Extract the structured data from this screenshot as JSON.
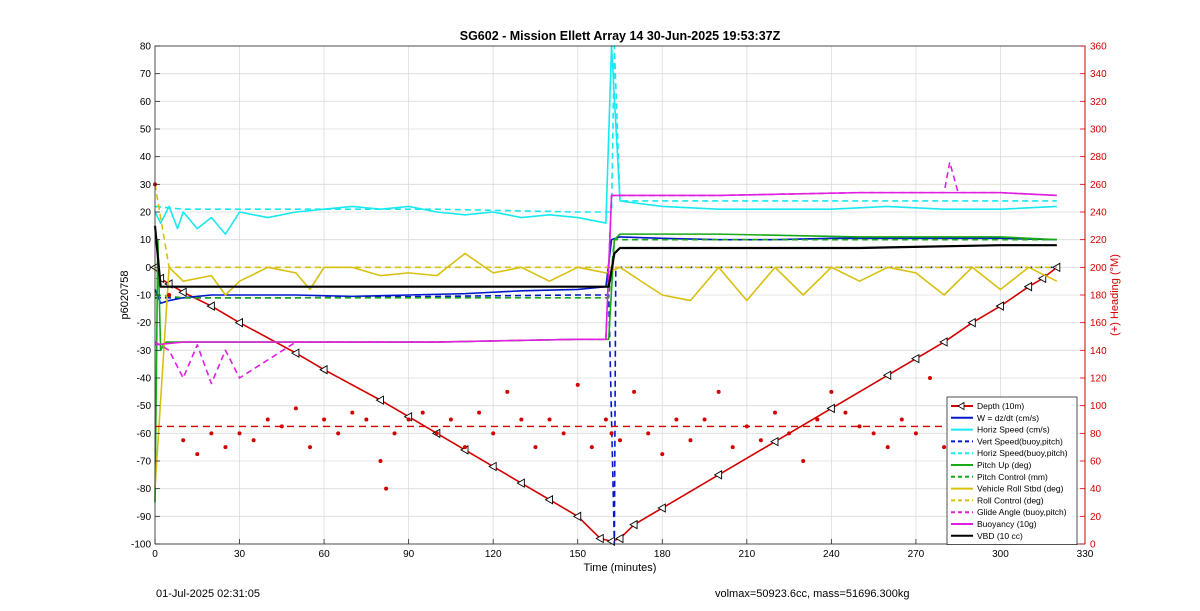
{
  "chart_data": {
    "type": "line",
    "title": "SG602 - Mission Ellett Array 14 30-Jun-2025 19:53:37Z",
    "xlabel": "Time (minutes)",
    "ylabel_left": "p6020758",
    "ylabel_right": "(+) Heading (°M)",
    "xlim": [
      0,
      330
    ],
    "ylim_left": [
      -100,
      80
    ],
    "ylim_right": [
      0,
      360
    ],
    "x_ticks": [
      0,
      30,
      60,
      90,
      120,
      150,
      180,
      210,
      240,
      270,
      300,
      330
    ],
    "y_ticks_left": [
      80,
      70,
      60,
      50,
      40,
      30,
      20,
      10,
      0,
      -10,
      -20,
      -30,
      -40,
      -50,
      -60,
      -70,
      -80,
      -90,
      -100
    ],
    "y_ticks_right": [
      360,
      340,
      320,
      300,
      280,
      260,
      240,
      220,
      200,
      180,
      160,
      140,
      120,
      100,
      80,
      60,
      40,
      20,
      0
    ],
    "colors": {
      "depth": "#d40000",
      "w": "#0018c8",
      "horiz": "#18e8f0",
      "pitch": "#18a818",
      "roll": "#d8c010",
      "glide": "#e020e0",
      "vbd": "#000000",
      "heading": "#d40000",
      "right_axis": "#d40000"
    },
    "legend_placement": "bottom-right",
    "legend": [
      {
        "label": "Depth (10m)",
        "color": "#d40000",
        "style": "solid-marker"
      },
      {
        "label": "W = dz/dt (cm/s)",
        "color": "#0018c8",
        "style": "solid"
      },
      {
        "label": "Horiz Speed (cm/s)",
        "color": "#18e8f0",
        "style": "solid"
      },
      {
        "label": "Vert Speed(buoy,pitch)",
        "color": "#0018c8",
        "style": "dashed"
      },
      {
        "label": "Horiz Speed(buoy,pitch)",
        "color": "#18e8f0",
        "style": "dashed"
      },
      {
        "label": "Pitch Up (deg)",
        "color": "#18a818",
        "style": "solid"
      },
      {
        "label": "Pitch Control (mm)",
        "color": "#18a818",
        "style": "dashed"
      },
      {
        "label": "Vehicle Roll Stbd (deg)",
        "color": "#d8c010",
        "style": "solid"
      },
      {
        "label": "Roll Control (deg)",
        "color": "#d8c010",
        "style": "dashed"
      },
      {
        "label": "Glide Angle (buoy,pitch)",
        "color": "#e020e0",
        "style": "dashed"
      },
      {
        "label": "Buoyancy (10g)",
        "color": "#e020e0",
        "style": "solid"
      },
      {
        "label": "VBD (10 cc)",
        "color": "#000000",
        "style": "solid"
      }
    ],
    "series": [
      {
        "name": "Depth (10m)",
        "axis": "left",
        "x": [
          0,
          2,
          5,
          10,
          20,
          30,
          50,
          60,
          80,
          90,
          100,
          110,
          120,
          130,
          140,
          150,
          158,
          162,
          165,
          170,
          180,
          200,
          220,
          240,
          260,
          270,
          280,
          290,
          300,
          310,
          315,
          320
        ],
        "y": [
          0,
          -4,
          -6,
          -9,
          -14,
          -20,
          -31,
          -37,
          -48,
          -54,
          -60,
          -66,
          -72,
          -78,
          -84,
          -90,
          -98,
          -99,
          -98,
          -93,
          -87,
          -75,
          -63,
          -51,
          -39,
          -33,
          -27,
          -20,
          -14,
          -7,
          -4,
          0
        ]
      },
      {
        "name": "W = dz/dt (cm/s)",
        "axis": "left",
        "x": [
          0,
          2,
          5,
          10,
          20,
          30,
          50,
          70,
          90,
          110,
          130,
          150,
          160,
          162,
          165,
          180,
          200,
          220,
          240,
          260,
          280,
          300,
          320
        ],
        "y": [
          -8,
          -13,
          -12,
          -11,
          -10,
          -10,
          -10,
          -10.5,
          -10,
          -9.5,
          -8.5,
          -8,
          -7,
          10,
          11,
          10.5,
          10,
          10,
          10.5,
          10.5,
          10.5,
          10.5,
          10
        ]
      },
      {
        "name": "Horiz Speed (cm/s)",
        "axis": "left",
        "x": [
          0,
          2,
          5,
          8,
          10,
          15,
          20,
          25,
          30,
          40,
          50,
          60,
          70,
          80,
          90,
          100,
          110,
          120,
          130,
          140,
          150,
          160,
          162,
          165,
          180,
          200,
          220,
          240,
          260,
          280,
          300,
          320
        ],
        "y": [
          20,
          16,
          22,
          14,
          20,
          14,
          18,
          12,
          20,
          18,
          20,
          21,
          22,
          21,
          22,
          20,
          19,
          20,
          18,
          19,
          18,
          16,
          80,
          24,
          22,
          21,
          21,
          21,
          22,
          21,
          21,
          22
        ]
      },
      {
        "name": "Vert Speed(buoy,pitch)",
        "axis": "left",
        "x": [
          0,
          10,
          50,
          100,
          150,
          161,
          163,
          163.5,
          165,
          200,
          250,
          300,
          320
        ],
        "y": [
          -11,
          -11,
          -11,
          -10.5,
          -10,
          -10,
          -100,
          0,
          0,
          0,
          0,
          0,
          0
        ]
      },
      {
        "name": "Horiz Speed(buoy,pitch)",
        "axis": "left",
        "x": [
          0,
          10,
          50,
          100,
          150,
          162,
          163,
          165,
          200,
          250,
          300,
          320
        ],
        "y": [
          22,
          21,
          21,
          21,
          20,
          20,
          80,
          24,
          24,
          24,
          24,
          24
        ]
      },
      {
        "name": "Pitch Up (deg)",
        "axis": "left",
        "x": [
          0,
          1,
          2,
          3,
          4,
          6,
          10,
          50,
          100,
          150,
          161,
          163,
          165,
          200,
          250,
          300,
          320
        ],
        "y": [
          -85,
          10,
          -30,
          -28,
          -27,
          -27,
          -27,
          -27,
          -27,
          -26,
          -26,
          10,
          12,
          12,
          11,
          11,
          10
        ]
      },
      {
        "name": "Pitch Control (mm)",
        "axis": "left",
        "x": [
          0,
          10,
          50,
          100,
          150,
          161,
          163,
          165,
          200,
          250,
          300,
          320
        ],
        "y": [
          -10,
          -11,
          -11,
          -11,
          -11,
          -11,
          10,
          10,
          10,
          10,
          10,
          10
        ]
      },
      {
        "name": "Vehicle Roll Stbd (deg)",
        "axis": "left",
        "x": [
          0,
          5,
          10,
          20,
          25,
          30,
          40,
          50,
          55,
          60,
          70,
          80,
          90,
          100,
          110,
          120,
          130,
          140,
          150,
          160,
          165,
          180,
          190,
          200,
          210,
          220,
          230,
          240,
          250,
          260,
          270,
          280,
          290,
          300,
          310,
          320
        ],
        "y": [
          -80,
          0,
          -5,
          -3,
          -10,
          -5,
          0,
          -2,
          -8,
          0,
          0,
          -3,
          -2,
          -3,
          5,
          -2,
          0,
          -5,
          0,
          -2,
          0,
          -10,
          -12,
          0,
          -12,
          0,
          -10,
          0,
          -5,
          0,
          -2,
          -10,
          0,
          -8,
          0,
          -5
        ]
      },
      {
        "name": "Roll Control (deg)",
        "axis": "left",
        "x": [
          0,
          5,
          10,
          20,
          30,
          40,
          50,
          60,
          70,
          80,
          90,
          100,
          110,
          120,
          130,
          140,
          150,
          160,
          162,
          165,
          180,
          200,
          220,
          240,
          260,
          280,
          300,
          320
        ],
        "y": [
          30,
          0,
          0,
          0,
          0,
          0,
          0,
          0,
          0,
          0,
          0,
          0,
          0,
          0,
          0,
          0,
          0,
          0,
          0,
          0,
          0,
          0,
          0,
          0,
          0,
          0,
          0,
          0
        ]
      },
      {
        "name": "Glide Angle (buoy,pitch)",
        "axis": "left",
        "x": [
          0,
          5,
          10,
          15,
          20,
          25,
          30,
          50,
          100,
          150,
          160,
          162,
          165,
          200,
          250,
          280,
          282,
          285,
          300,
          320
        ],
        "y": [
          -27,
          -30,
          -40,
          -28,
          -42,
          -30,
          -40,
          -27,
          -27,
          -26,
          -26,
          26,
          26,
          26,
          27,
          27,
          38,
          27,
          27,
          26
        ]
      },
      {
        "name": "Buoyancy (10g)",
        "axis": "left",
        "x": [
          0,
          10,
          50,
          100,
          150,
          160,
          162,
          165,
          200,
          250,
          300,
          320
        ],
        "y": [
          -28,
          -27,
          -27,
          -27,
          -26,
          -26,
          26,
          26,
          26,
          27,
          27,
          26
        ]
      },
      {
        "name": "VBD (10 cc)",
        "axis": "left",
        "x": [
          0,
          2,
          5,
          10,
          50,
          100,
          150,
          161,
          163,
          165,
          200,
          250,
          300,
          320
        ],
        "y": [
          15,
          -7,
          -7,
          -7,
          -7,
          -7,
          -7,
          -7,
          5,
          7,
          7,
          7,
          8,
          8
        ]
      },
      {
        "name": "Heading",
        "axis": "right",
        "x": [
          0,
          5,
          10,
          15,
          20,
          25,
          30,
          35,
          40,
          45,
          50,
          55,
          60,
          65,
          70,
          75,
          80,
          82,
          85,
          90,
          95,
          100,
          105,
          110,
          115,
          120,
          125,
          130,
          135,
          140,
          145,
          150,
          155,
          160,
          162,
          165,
          170,
          175,
          180,
          185,
          190,
          195,
          200,
          205,
          210,
          215,
          220,
          225,
          230,
          235,
          240,
          245,
          250,
          255,
          260,
          265,
          270,
          275,
          280,
          285,
          290,
          295,
          300,
          305,
          310,
          315,
          320
        ],
        "y": [
          260,
          180,
          75,
          65,
          80,
          70,
          80,
          75,
          90,
          85,
          98,
          70,
          90,
          80,
          95,
          90,
          60,
          40,
          80,
          90,
          95,
          80,
          90,
          70,
          95,
          80,
          110,
          90,
          70,
          90,
          80,
          115,
          70,
          90,
          80,
          75,
          110,
          80,
          65,
          90,
          75,
          90,
          110,
          70,
          85,
          75,
          95,
          80,
          60,
          90,
          110,
          95,
          85,
          80,
          70,
          90,
          80,
          120,
          70,
          90,
          75,
          90,
          70,
          90,
          75,
          85,
          80
        ]
      },
      {
        "name": "Mean Heading",
        "axis": "right",
        "x": [
          0,
          320
        ],
        "y": [
          85,
          85
        ]
      }
    ]
  },
  "footer": {
    "timestamp": "01-Jul-2025 02:31:05",
    "vol_mass": "volmax=50923.6cc, mass=51696.300kg"
  }
}
